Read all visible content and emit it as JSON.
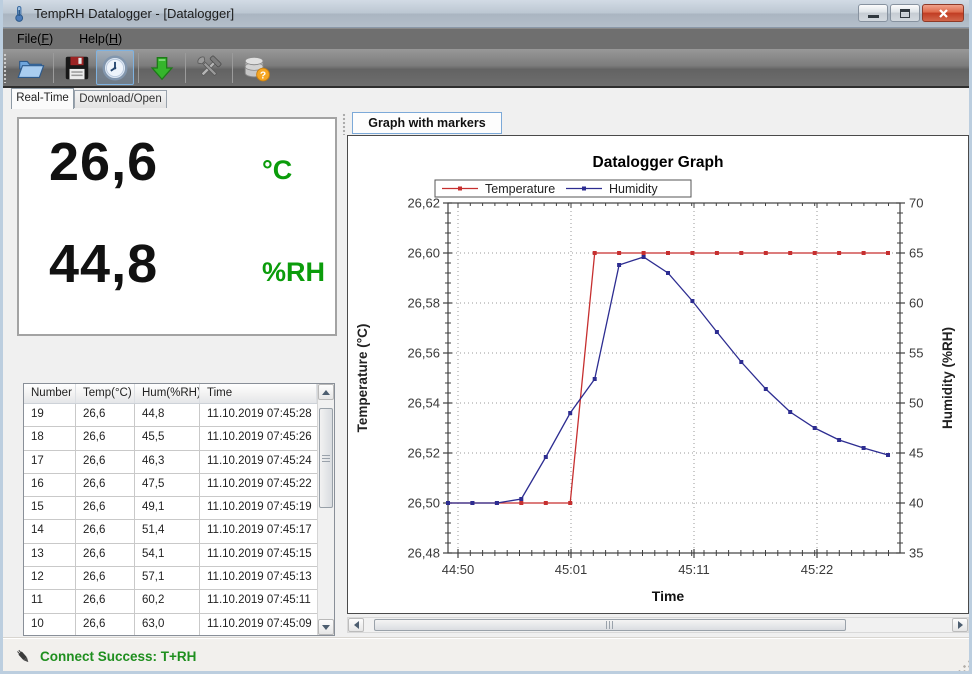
{
  "window": {
    "title": "TempRH Datalogger - [Datalogger]",
    "frame_color": "#bccedf",
    "controls": {
      "minimize": "minimize",
      "maximize": "maximize",
      "close": "close"
    }
  },
  "menu": {
    "items": [
      {
        "pre": "File(",
        "key": "F",
        "post": ")"
      },
      {
        "pre": "Help(",
        "key": "H",
        "post": ")"
      }
    ]
  },
  "toolbar": {
    "buttons": [
      {
        "icon": "open-folder-icon",
        "selected": false
      },
      {
        "icon": "save-floppy-icon",
        "selected": false
      },
      {
        "icon": "realtime-clock-icon",
        "selected": true
      },
      {
        "icon": "download-arrow-icon",
        "selected": false
      },
      {
        "icon": "settings-tools-icon",
        "selected": false
      },
      {
        "icon": "database-help-icon",
        "selected": false
      }
    ]
  },
  "tabs": [
    {
      "label": "Real-Time",
      "active": true
    },
    {
      "label": "Download/Open",
      "active": false
    }
  ],
  "readout": {
    "temperature": "26,6",
    "temperature_unit": "°C",
    "humidity": "44,8",
    "humidity_unit": "%RH",
    "value_color": "#111111",
    "unit_color": "#0b9c0b"
  },
  "table": {
    "columns": [
      "Number",
      "Temp(°C)",
      "Hum(%RH)",
      "Time"
    ],
    "rows": [
      [
        "19",
        "26,6",
        "44,8",
        "11.10.2019 07:45:28"
      ],
      [
        "18",
        "26,6",
        "45,5",
        "11.10.2019 07:45:26"
      ],
      [
        "17",
        "26,6",
        "46,3",
        "11.10.2019 07:45:24"
      ],
      [
        "16",
        "26,6",
        "47,5",
        "11.10.2019 07:45:22"
      ],
      [
        "15",
        "26,6",
        "49,1",
        "11.10.2019 07:45:19"
      ],
      [
        "14",
        "26,6",
        "51,4",
        "11.10.2019 07:45:17"
      ],
      [
        "13",
        "26,6",
        "54,1",
        "11.10.2019 07:45:15"
      ],
      [
        "12",
        "26,6",
        "57,1",
        "11.10.2019 07:45:13"
      ],
      [
        "11",
        "26,6",
        "60,2",
        "11.10.2019 07:45:11"
      ],
      [
        "10",
        "26,6",
        "63,0",
        "11.10.2019 07:45:09"
      ]
    ]
  },
  "graph_panel": {
    "button_label": "Graph with markers"
  },
  "chart_data": {
    "type": "line",
    "title": "Datalogger Graph",
    "xlabel": "Time",
    "x_tick_labels": [
      "44:50",
      "45:01",
      "45:11",
      "45:22"
    ],
    "left_axis": {
      "label": "Temperature (°C)",
      "min": 26.48,
      "max": 26.62,
      "tick_values": [
        26.48,
        26.5,
        26.52,
        26.54,
        26.56,
        26.58,
        26.6,
        26.62
      ],
      "tick_labels": [
        "26,48",
        "26,50",
        "26,52",
        "26,54",
        "26,56",
        "26,58",
        "26,60",
        "26,62"
      ]
    },
    "right_axis": {
      "label": "Humidity (%RH)",
      "min": 35,
      "max": 70,
      "tick_values": [
        35,
        40,
        45,
        50,
        55,
        60,
        65,
        70
      ]
    },
    "grid": "dotted",
    "legend_position": "top",
    "series": [
      {
        "name": "Temperature",
        "color": "#c62f2f",
        "axis": "left",
        "values": [
          26.5,
          26.5,
          26.5,
          26.5,
          26.5,
          26.5,
          26.6,
          26.6,
          26.6,
          26.6,
          26.6,
          26.6,
          26.6,
          26.6,
          26.6,
          26.6,
          26.6,
          26.6,
          26.6
        ]
      },
      {
        "name": "Humidity",
        "color": "#2d2d91",
        "axis": "right",
        "values": [
          40.0,
          40.0,
          40.0,
          40.4,
          44.6,
          49.0,
          52.4,
          63.8,
          64.6,
          63.0,
          60.2,
          57.1,
          54.1,
          51.4,
          49.1,
          47.5,
          46.3,
          45.5,
          44.8
        ]
      }
    ]
  },
  "status": {
    "text": "Connect Success: T+RH",
    "color": "#1f8f1f"
  }
}
